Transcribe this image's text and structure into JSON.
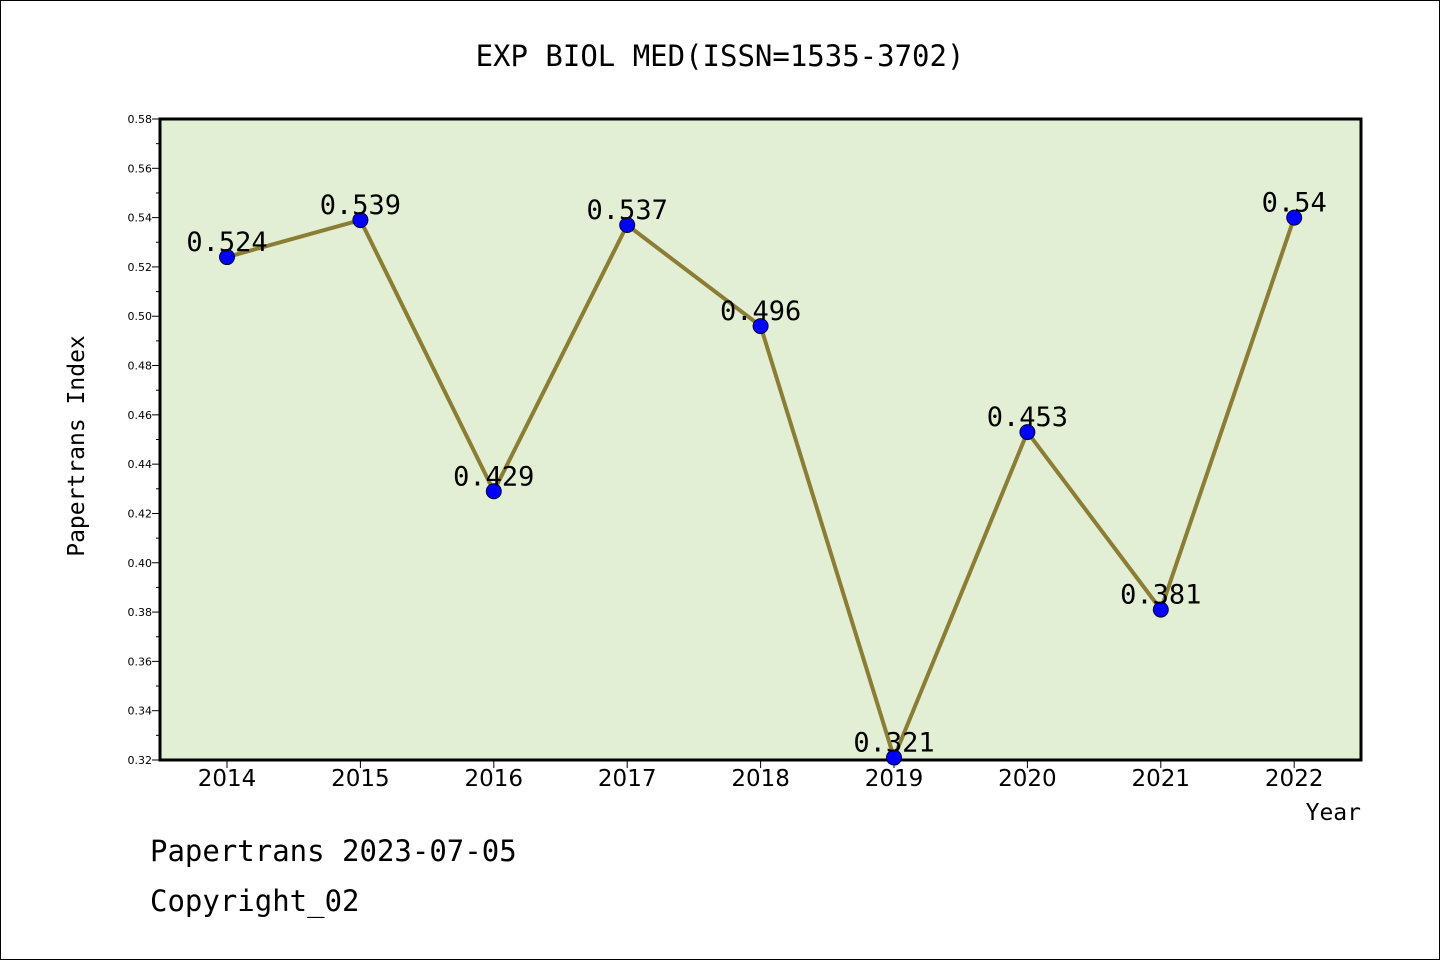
{
  "chart_data": {
    "type": "line",
    "title": "EXP BIOL MED(ISSN=1535-3702)",
    "xlabel": "Year",
    "ylabel": "Papertrans Index",
    "categories": [
      "2014",
      "2015",
      "2016",
      "2017",
      "2018",
      "2019",
      "2020",
      "2021",
      "2022"
    ],
    "values": [
      0.524,
      0.539,
      0.429,
      0.537,
      0.496,
      0.321,
      0.453,
      0.381,
      0.54
    ],
    "data_labels": [
      "0.524",
      "0.539",
      "0.429",
      "0.537",
      "0.496",
      "0.321",
      "0.453",
      "0.381",
      "0.54"
    ],
    "ylim": [
      0.32,
      0.58
    ],
    "yticks": [
      "0.32",
      "0.34",
      "0.36",
      "0.38",
      "0.40",
      "0.42",
      "0.44",
      "0.46",
      "0.48",
      "0.50",
      "0.52",
      "0.54",
      "0.56",
      "0.58"
    ],
    "grid": false,
    "colors": {
      "plot_bg": "#e2efd5",
      "line": "#8b7d34",
      "marker": "#0000ff",
      "axis": "#000000"
    }
  },
  "footer": {
    "line1": "Papertrans 2023-07-05",
    "line2": "Copyright_02"
  }
}
